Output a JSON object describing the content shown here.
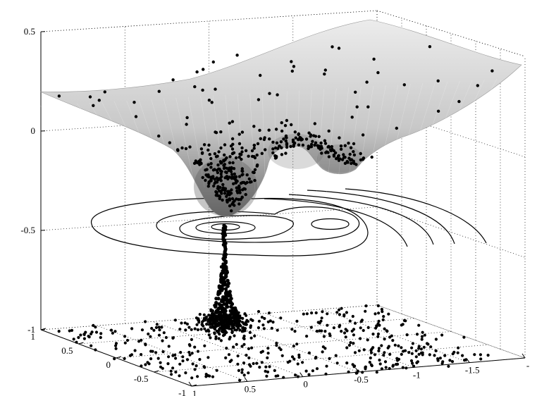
{
  "chart_data": {
    "type": "surface3d",
    "title": "",
    "xlabel": "",
    "ylabel": "",
    "zlabel": "",
    "z_axis": {
      "range": [
        -1,
        0.5
      ],
      "ticks": [
        {
          "value": 0.5,
          "label": "0.5"
        },
        {
          "value": 0,
          "label": "0"
        },
        {
          "value": -0.5,
          "label": "-0.5"
        },
        {
          "value": -1,
          "label": "-1"
        }
      ]
    },
    "x_axis": {
      "range": [
        -2,
        1
      ],
      "ticks": [
        {
          "value": 1,
          "label": "1"
        },
        {
          "value": 0.5,
          "label": "0.5"
        },
        {
          "value": 0,
          "label": "0"
        },
        {
          "value": -0.5,
          "label": "-0.5"
        },
        {
          "value": -1,
          "label": "-1"
        },
        {
          "value": -1.5,
          "label": "-1.5"
        },
        {
          "value": -2,
          "label": "-"
        }
      ]
    },
    "y_axis": {
      "range": [
        -1,
        1
      ],
      "ticks": [
        {
          "value": 1,
          "label": "1"
        },
        {
          "value": 0.5,
          "label": "0.5"
        },
        {
          "value": 0,
          "label": "0"
        },
        {
          "value": -0.5,
          "label": "-0.5"
        },
        {
          "value": -1,
          "label": "-1"
        }
      ]
    },
    "surface": {
      "shading": "grayscale",
      "colors": {
        "high": "#e6e6e6",
        "low": "#6a6a6a"
      }
    },
    "minima": [
      {
        "x": 0.6,
        "y": 0.35,
        "z": -0.45
      },
      {
        "x": -0.1,
        "y": -0.2,
        "z": -0.18
      },
      {
        "x": -0.7,
        "y": -0.45,
        "z": -0.15
      }
    ],
    "grid": true,
    "scatter": {
      "color": "#000000",
      "description_points": 950
    }
  }
}
